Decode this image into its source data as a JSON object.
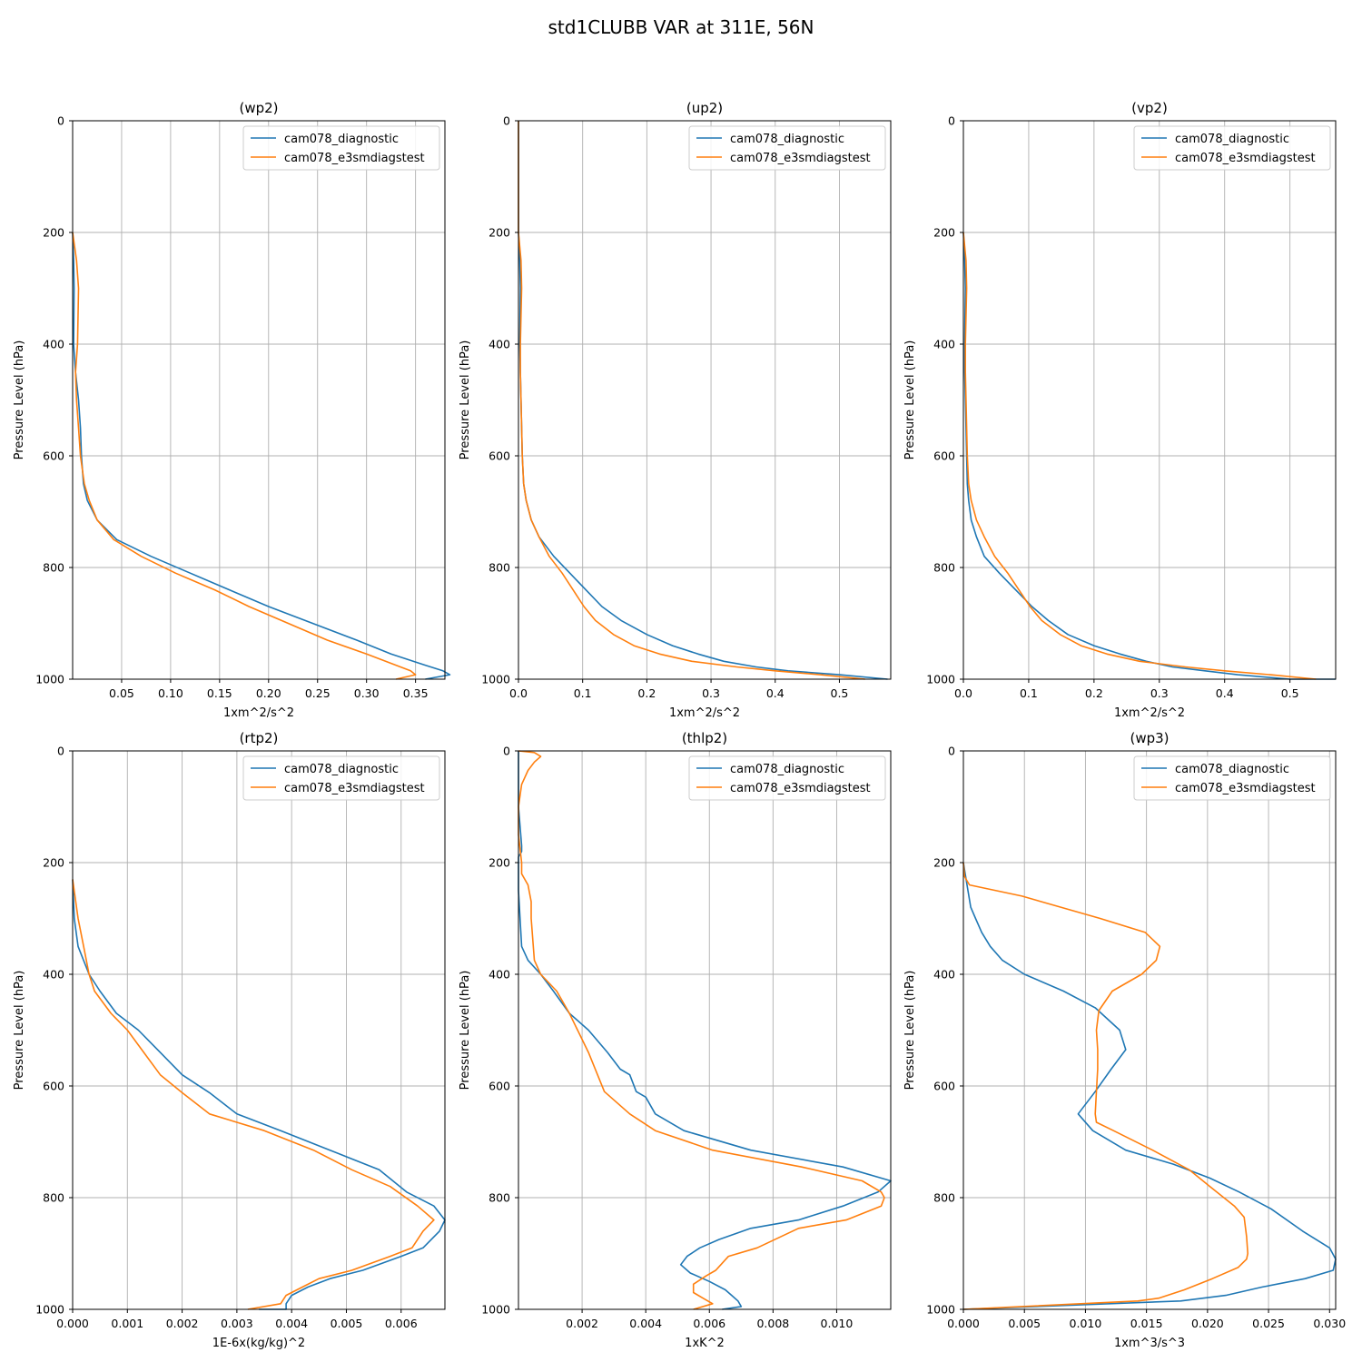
{
  "figure": {
    "title": "std1CLUBB VAR at 311E, 56N"
  },
  "colors": {
    "diagnostic": "#1f77b4",
    "e3smdiagstest": "#ff7f0e",
    "grid": "#b0b0b0"
  },
  "chart_data": [
    {
      "type": "line",
      "title": "(wp2)",
      "xlabel": "1xm^2/s^2",
      "ylabel": "Pressure Level (hPa)",
      "xlim": [
        0.0,
        0.38
      ],
      "ylim": [
        1000,
        0
      ],
      "xticks": [
        0.05,
        0.1,
        0.15,
        0.2,
        0.25,
        0.3,
        0.35
      ],
      "xtick_labels": [
        "0.05",
        "0.10",
        "0.15",
        "0.20",
        "0.25",
        "0.30",
        "0.35"
      ],
      "yticks": [
        0,
        200,
        400,
        600,
        800,
        1000
      ],
      "legend": "upper right",
      "grid": true,
      "series": [
        {
          "name": "cam078_diagnostic",
          "x": [
            0.0,
            0.001,
            0.0015,
            0.001,
            0.003,
            0.006,
            0.008,
            0.009,
            0.011,
            0.015,
            0.025,
            0.045,
            0.08,
            0.12,
            0.16,
            0.2,
            0.245,
            0.29,
            0.325,
            0.36,
            0.378,
            0.385,
            0.36
          ],
          "y": [
            200,
            250,
            300,
            400,
            450,
            500,
            550,
            600,
            650,
            680,
            715,
            750,
            780,
            810,
            840,
            870,
            900,
            930,
            955,
            975,
            985,
            992,
            1000
          ]
        },
        {
          "name": "cam078_e3smdiagstest",
          "x": [
            0.0,
            0.004,
            0.006,
            0.005,
            0.003,
            0.004,
            0.006,
            0.008,
            0.012,
            0.017,
            0.025,
            0.042,
            0.07,
            0.105,
            0.145,
            0.18,
            0.22,
            0.26,
            0.3,
            0.33,
            0.345,
            0.35,
            0.33
          ],
          "y": [
            200,
            250,
            300,
            400,
            450,
            500,
            550,
            600,
            650,
            680,
            715,
            750,
            780,
            810,
            840,
            870,
            900,
            930,
            955,
            975,
            985,
            992,
            1000
          ]
        }
      ]
    },
    {
      "type": "line",
      "title": "(up2)",
      "xlabel": "1xm^2/s^2",
      "ylabel": "Pressure Level (hPa)",
      "xlim": [
        0.0,
        0.58
      ],
      "ylim": [
        1000,
        0
      ],
      "xticks": [
        0.0,
        0.1,
        0.2,
        0.3,
        0.4,
        0.5
      ],
      "xtick_labels": [
        "0.0",
        "0.1",
        "0.2",
        "0.3",
        "0.4",
        "0.5"
      ],
      "yticks": [
        0,
        200,
        400,
        600,
        800,
        1000
      ],
      "legend": "upper right",
      "grid": true,
      "series": [
        {
          "name": "cam078_diagnostic",
          "x": [
            0.0,
            0.0,
            0.0,
            0.002,
            0.003,
            0.002,
            0.003,
            0.004,
            0.005,
            0.006,
            0.008,
            0.012,
            0.02,
            0.032,
            0.055,
            0.08,
            0.105,
            0.13,
            0.16,
            0.2,
            0.24,
            0.28,
            0.32,
            0.37,
            0.42,
            0.5,
            0.575
          ],
          "y": [
            0,
            100,
            200,
            250,
            300,
            400,
            450,
            500,
            550,
            600,
            650,
            680,
            715,
            745,
            780,
            810,
            840,
            870,
            895,
            920,
            940,
            955,
            968,
            978,
            985,
            992,
            1000
          ]
        },
        {
          "name": "cam078_e3smdiagstest",
          "x": [
            0.0,
            0.0,
            0.0,
            0.004,
            0.005,
            0.003,
            0.003,
            0.004,
            0.005,
            0.006,
            0.008,
            0.012,
            0.02,
            0.032,
            0.048,
            0.068,
            0.085,
            0.102,
            0.12,
            0.148,
            0.18,
            0.22,
            0.27,
            0.34,
            0.4,
            0.47,
            0.54
          ],
          "y": [
            0,
            100,
            200,
            250,
            300,
            400,
            450,
            500,
            550,
            600,
            650,
            680,
            715,
            745,
            780,
            810,
            840,
            870,
            895,
            920,
            940,
            955,
            968,
            978,
            985,
            992,
            1000
          ]
        }
      ]
    },
    {
      "type": "line",
      "title": "(vp2)",
      "xlabel": "1xm^2/s^2",
      "ylabel": "Pressure Level (hPa)",
      "xlim": [
        0.0,
        0.57
      ],
      "ylim": [
        1000,
        0
      ],
      "xticks": [
        0.0,
        0.1,
        0.2,
        0.3,
        0.4,
        0.5
      ],
      "xtick_labels": [
        "0.0",
        "0.1",
        "0.2",
        "0.3",
        "0.4",
        "0.5"
      ],
      "yticks": [
        0,
        200,
        400,
        600,
        800,
        1000
      ],
      "legend": "upper right",
      "grid": true,
      "series": [
        {
          "name": "cam078_diagnostic",
          "x": [
            0.0,
            0.002,
            0.003,
            0.002,
            0.002,
            0.003,
            0.004,
            0.005,
            0.006,
            0.008,
            0.012,
            0.02,
            0.032,
            0.055,
            0.08,
            0.105,
            0.13,
            0.16,
            0.2,
            0.24,
            0.28,
            0.32,
            0.37,
            0.42,
            0.5,
            0.57
          ],
          "y": [
            200,
            250,
            300,
            400,
            450,
            500,
            550,
            600,
            650,
            680,
            715,
            745,
            780,
            810,
            840,
            870,
            895,
            920,
            940,
            955,
            968,
            978,
            985,
            992,
            1000,
            1000
          ]
        },
        {
          "name": "cam078_e3smdiagstest",
          "x": [
            0.0,
            0.004,
            0.005,
            0.003,
            0.003,
            0.004,
            0.005,
            0.006,
            0.008,
            0.012,
            0.02,
            0.032,
            0.048,
            0.068,
            0.085,
            0.102,
            0.12,
            0.148,
            0.18,
            0.22,
            0.27,
            0.34,
            0.4,
            0.47,
            0.54
          ],
          "y": [
            200,
            250,
            300,
            400,
            450,
            500,
            550,
            600,
            650,
            680,
            715,
            745,
            780,
            810,
            840,
            870,
            895,
            920,
            940,
            955,
            968,
            978,
            985,
            992,
            1000
          ]
        }
      ]
    },
    {
      "type": "line",
      "title": "(rtp2)",
      "xlabel": "1E-6x(kg/kg)^2",
      "ylabel": "Pressure Level (hPa)",
      "xlim": [
        0.0,
        0.0068
      ],
      "ylim": [
        1000,
        0
      ],
      "xticks": [
        0.0,
        0.001,
        0.002,
        0.003,
        0.004,
        0.005,
        0.006
      ],
      "xtick_labels": [
        "0.000",
        "0.001",
        "0.002",
        "0.003",
        "0.004",
        "0.005",
        "0.006"
      ],
      "yticks": [
        0,
        200,
        400,
        600,
        800,
        1000
      ],
      "legend": "upper right",
      "grid": true,
      "series": [
        {
          "name": "cam078_diagnostic",
          "x": [
            0.0,
            3e-05,
            0.0001,
            0.0003,
            0.0005,
            0.0008,
            0.0012,
            0.0016,
            0.002,
            0.0025,
            0.003,
            0.0038,
            0.0047,
            0.0056,
            0.0061,
            0.0066,
            0.0068,
            0.0067,
            0.0064,
            0.006,
            0.0053,
            0.0047,
            0.0043,
            0.004,
            0.0039,
            0.0039,
            0.0034
          ],
          "y": [
            230,
            300,
            350,
            400,
            430,
            470,
            500,
            540,
            580,
            612,
            650,
            680,
            715,
            750,
            790,
            815,
            840,
            860,
            890,
            905,
            930,
            945,
            960,
            975,
            990,
            1000,
            1000
          ]
        },
        {
          "name": "cam078_e3smdiagstest",
          "x": [
            0.0,
            0.0001,
            0.0002,
            0.0003,
            0.0004,
            0.0007,
            0.001,
            0.0013,
            0.0016,
            0.002,
            0.0025,
            0.0035,
            0.0044,
            0.0051,
            0.0058,
            0.0063,
            0.0066,
            0.0064,
            0.0062,
            0.0058,
            0.0051,
            0.0045,
            0.0042,
            0.0039,
            0.0038,
            0.0032
          ],
          "y": [
            230,
            300,
            350,
            400,
            430,
            470,
            500,
            540,
            580,
            612,
            650,
            680,
            715,
            750,
            780,
            815,
            840,
            860,
            890,
            905,
            930,
            945,
            960,
            975,
            990,
            1000
          ]
        }
      ]
    },
    {
      "type": "line",
      "title": "(thlp2)",
      "xlabel": "1xK^2",
      "ylabel": "Pressure Level (hPa)",
      "xlim": [
        0.0,
        0.0117
      ],
      "ylim": [
        1000,
        0
      ],
      "xticks": [
        0.002,
        0.004,
        0.006,
        0.008,
        0.01
      ],
      "xtick_labels": [
        "0.002",
        "0.004",
        "0.006",
        "0.008",
        "0.010"
      ],
      "yticks": [
        0,
        200,
        400,
        600,
        800,
        1000
      ],
      "legend": "upper right",
      "grid": true,
      "series": [
        {
          "name": "cam078_diagnostic",
          "x": [
            0.0,
            0.0,
            0.0001,
            0.0001,
            0.0,
            0.0,
            0.0001,
            0.0003,
            0.0007,
            0.0011,
            0.0016,
            0.0022,
            0.0028,
            0.0032,
            0.0035,
            0.0037,
            0.004,
            0.0043,
            0.0052,
            0.0073,
            0.0102,
            0.0117,
            0.0113,
            0.0102,
            0.0088,
            0.0073,
            0.0063,
            0.0057,
            0.0053,
            0.0051,
            0.0054,
            0.006,
            0.0065,
            0.0067,
            0.0069,
            0.007,
            0.0064
          ],
          "y": [
            0,
            100,
            170,
            180,
            190,
            250,
            350,
            375,
            400,
            430,
            470,
            500,
            540,
            570,
            580,
            610,
            620,
            650,
            680,
            715,
            745,
            770,
            790,
            815,
            840,
            855,
            875,
            890,
            905,
            920,
            935,
            950,
            965,
            975,
            985,
            995,
            1000
          ]
        },
        {
          "name": "cam078_e3smdiagstest",
          "x": [
            0.0,
            0.0005,
            0.0007,
            0.0005,
            0.0003,
            0.0001,
            0.0,
            0.0,
            0.0001,
            0.0001,
            0.0001,
            0.0003,
            0.0004,
            0.0004,
            0.0005,
            0.0007,
            0.0012,
            0.0016,
            0.0022,
            0.0027,
            0.0035,
            0.0043,
            0.0061,
            0.0089,
            0.0108,
            0.0114,
            0.0115,
            0.0114,
            0.0103,
            0.0088,
            0.0075,
            0.0066,
            0.0062,
            0.0059,
            0.0055,
            0.0055,
            0.0058,
            0.0061,
            0.0055
          ],
          "y": [
            0,
            3,
            10,
            20,
            35,
            60,
            100,
            150,
            200,
            210,
            220,
            240,
            270,
            300,
            375,
            400,
            430,
            470,
            540,
            610,
            650,
            680,
            715,
            745,
            770,
            790,
            800,
            815,
            840,
            855,
            890,
            905,
            930,
            940,
            955,
            970,
            980,
            990,
            1000
          ]
        }
      ]
    },
    {
      "type": "line",
      "title": "(wp3)",
      "xlabel": "1xm^3/s^3",
      "ylabel": "Pressure Level (hPa)",
      "xlim": [
        0.0,
        0.0305
      ],
      "ylim": [
        1000,
        0
      ],
      "xticks": [
        0.0,
        0.005,
        0.01,
        0.015,
        0.02,
        0.025,
        0.03
      ],
      "xtick_labels": [
        "0.000",
        "0.005",
        "0.010",
        "0.015",
        "0.020",
        "0.025",
        "0.030"
      ],
      "yticks": [
        0,
        200,
        400,
        600,
        800,
        1000
      ],
      "legend": "upper right",
      "grid": true,
      "series": [
        {
          "name": "cam078_diagnostic",
          "x": [
            0.0,
            0.0003,
            0.0006,
            0.001,
            0.0015,
            0.0022,
            0.0032,
            0.005,
            0.0082,
            0.0108,
            0.0128,
            0.0133,
            0.0121,
            0.0108,
            0.0094,
            0.0106,
            0.0133,
            0.0172,
            0.0202,
            0.0226,
            0.0252,
            0.0278,
            0.03,
            0.0305,
            0.0303,
            0.028,
            0.0245,
            0.0215,
            0.0178,
            0.0
          ],
          "y": [
            200,
            240,
            280,
            300,
            325,
            350,
            375,
            400,
            430,
            460,
            500,
            535,
            570,
            610,
            650,
            680,
            715,
            740,
            765,
            790,
            820,
            860,
            890,
            910,
            930,
            945,
            960,
            975,
            985,
            1000
          ]
        },
        {
          "name": "cam078_e3smdiagstest",
          "x": [
            0.0,
            0.0001,
            0.0005,
            0.0048,
            0.0112,
            0.0149,
            0.0161,
            0.0158,
            0.0146,
            0.0122,
            0.0111,
            0.0109,
            0.011,
            0.011,
            0.0109,
            0.0108,
            0.0109,
            0.0123,
            0.0155,
            0.0185,
            0.0202,
            0.0222,
            0.023,
            0.0232,
            0.0233,
            0.0232,
            0.0225,
            0.0204,
            0.0181,
            0.016,
            0.0143,
            0.0
          ],
          "y": [
            200,
            225,
            240,
            260,
            300,
            325,
            350,
            375,
            400,
            430,
            465,
            500,
            535,
            570,
            610,
            650,
            665,
            680,
            715,
            750,
            780,
            815,
            835,
            870,
            900,
            910,
            925,
            945,
            965,
            980,
            985,
            1000
          ]
        }
      ]
    }
  ]
}
